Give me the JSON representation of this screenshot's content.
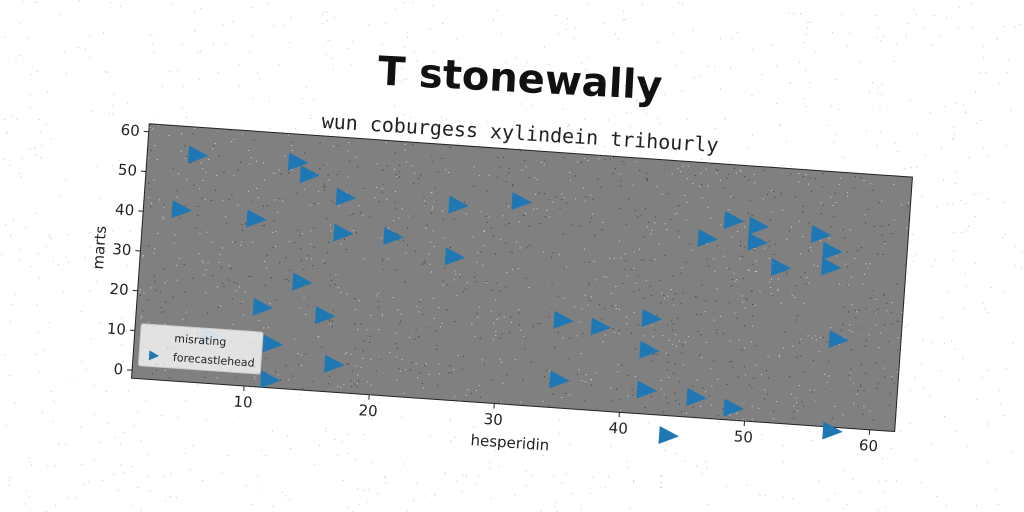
{
  "chart_data": {
    "type": "scatter",
    "title": "T stonewally",
    "subtitle": "wun coburgess xylindein trihourly",
    "xlabel": "hesperidin",
    "ylabel": "marts",
    "xlim": [
      1,
      62
    ],
    "ylim": [
      -2,
      62
    ],
    "xticks": [
      10,
      20,
      30,
      40,
      50,
      60
    ],
    "yticks": [
      0,
      10,
      20,
      30,
      40,
      50,
      60
    ],
    "legend": {
      "placement": "lower-left",
      "entries": [
        {
          "label": "misrating",
          "marker": "none"
        },
        {
          "label": "forecastlehead",
          "marker": "triangle-right"
        }
      ]
    },
    "series": [
      {
        "name": "forecastlehead",
        "marker": "triangle-right",
        "color": "#1f77b4",
        "points": [
          {
            "x": 5,
            "y": 55
          },
          {
            "x": 13,
            "y": 55
          },
          {
            "x": 14,
            "y": 52
          },
          {
            "x": 4,
            "y": 41
          },
          {
            "x": 10,
            "y": 40
          },
          {
            "x": 17,
            "y": 47
          },
          {
            "x": 17,
            "y": 38
          },
          {
            "x": 21,
            "y": 38
          },
          {
            "x": 26,
            "y": 34
          },
          {
            "x": 26,
            "y": 47
          },
          {
            "x": 31,
            "y": 49
          },
          {
            "x": 14,
            "y": 25
          },
          {
            "x": 11,
            "y": 18
          },
          {
            "x": 16,
            "y": 17
          },
          {
            "x": 7,
            "y": 10
          },
          {
            "x": 12,
            "y": 9
          },
          {
            "x": 17,
            "y": 5
          },
          {
            "x": 12,
            "y": 0
          },
          {
            "x": 35,
            "y": 20
          },
          {
            "x": 38,
            "y": 19
          },
          {
            "x": 42,
            "y": 22
          },
          {
            "x": 42,
            "y": 14
          },
          {
            "x": 35,
            "y": 5
          },
          {
            "x": 42,
            "y": 4
          },
          {
            "x": 46,
            "y": 3
          },
          {
            "x": 49,
            "y": 1
          },
          {
            "x": 44,
            "y": -7
          },
          {
            "x": 46,
            "y": 43
          },
          {
            "x": 48,
            "y": 48
          },
          {
            "x": 50,
            "y": 47
          },
          {
            "x": 50,
            "y": 43
          },
          {
            "x": 52,
            "y": 37
          },
          {
            "x": 55,
            "y": 46
          },
          {
            "x": 56,
            "y": 42
          },
          {
            "x": 56,
            "y": 38
          },
          {
            "x": 57,
            "y": 20
          },
          {
            "x": 57,
            "y": -3
          }
        ]
      }
    ],
    "colors": {
      "plot_background": "#808080",
      "marker": "#1f77b4",
      "page_background": "#ffffff"
    },
    "grid": false
  }
}
